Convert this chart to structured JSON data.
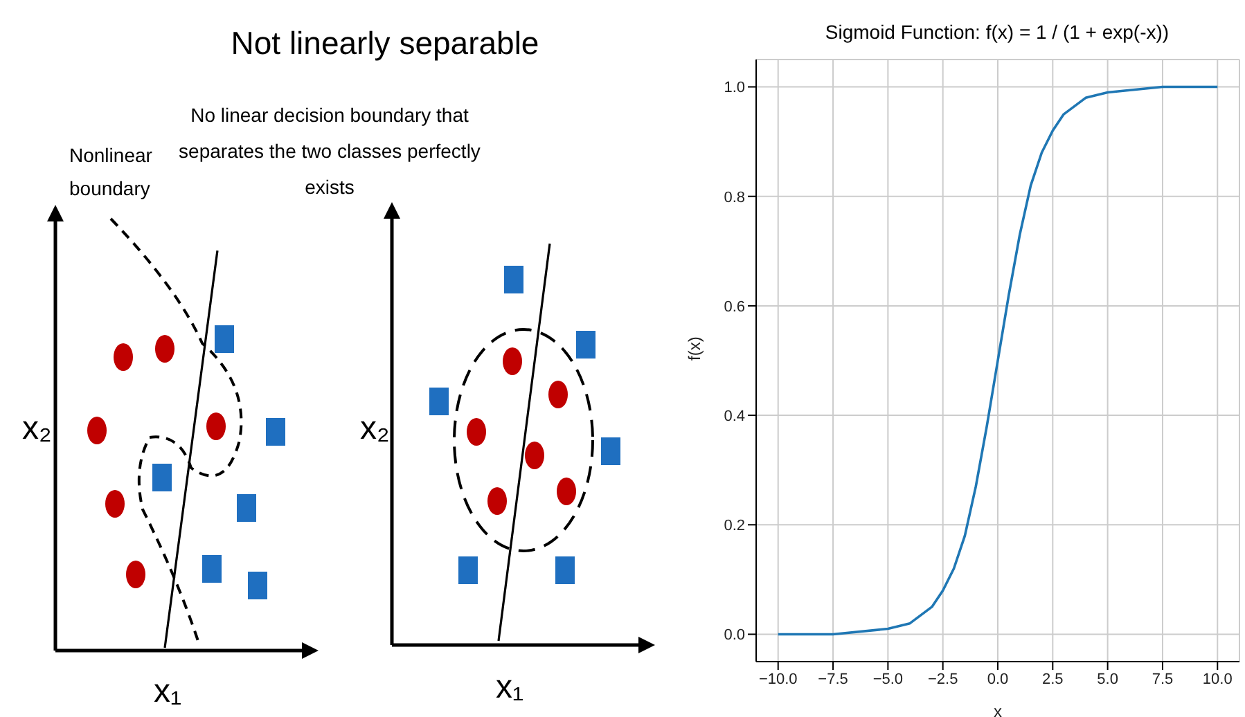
{
  "chart_data": [
    {
      "type": "other",
      "title": "Not linearly separable",
      "subtitle": "No linear decision boundary that separates the two classes perfectly exists",
      "annotations": [
        "Nonlinear boundary",
        "x₂",
        "x₁",
        "x₂",
        "x₁"
      ]
    },
    {
      "type": "line",
      "title": "Sigmoid Function: f(x) = 1 / (1 + exp(-x))",
      "xlabel": "x",
      "ylabel": "f(x)",
      "xlim": [
        -11,
        11
      ],
      "ylim": [
        -0.05,
        1.05
      ],
      "xticks": [
        {
          "value": -10,
          "label": "−10.0"
        },
        {
          "value": -7.5,
          "label": "−7.5"
        },
        {
          "value": -5,
          "label": "−5.0"
        },
        {
          "value": -2.5,
          "label": "−2.5"
        },
        {
          "value": 0,
          "label": "0.0"
        },
        {
          "value": 2.5,
          "label": "2.5"
        },
        {
          "value": 5,
          "label": "5.0"
        },
        {
          "value": 7.5,
          "label": "7.5"
        },
        {
          "value": 10,
          "label": "10.0"
        }
      ],
      "yticks": [
        {
          "value": 0,
          "label": "0.0"
        },
        {
          "value": 0.2,
          "label": "0.2"
        },
        {
          "value": 0.4,
          "label": "0.4"
        },
        {
          "value": 0.6,
          "label": "0.6"
        },
        {
          "value": 0.8,
          "label": "0.8"
        },
        {
          "value": 1,
          "label": "1.0"
        }
      ],
      "grid": true,
      "marker": "none",
      "line_style": "solid",
      "series": [
        {
          "color": "#1f77b4",
          "x": [
            -10,
            -7.5,
            -5,
            -4,
            -3,
            -2.5,
            -2,
            -1.5,
            -1,
            -0.5,
            0,
            0.5,
            1,
            1.5,
            2,
            2.5,
            3,
            4,
            5,
            7.5,
            10
          ],
          "values": [
            0,
            0,
            0.01,
            0.02,
            0.05,
            0.08,
            0.12,
            0.18,
            0.27,
            0.38,
            0.5,
            0.62,
            0.73,
            0.82,
            0.88,
            0.92,
            0.95,
            0.98,
            0.99,
            1,
            1
          ]
        }
      ]
    }
  ]
}
